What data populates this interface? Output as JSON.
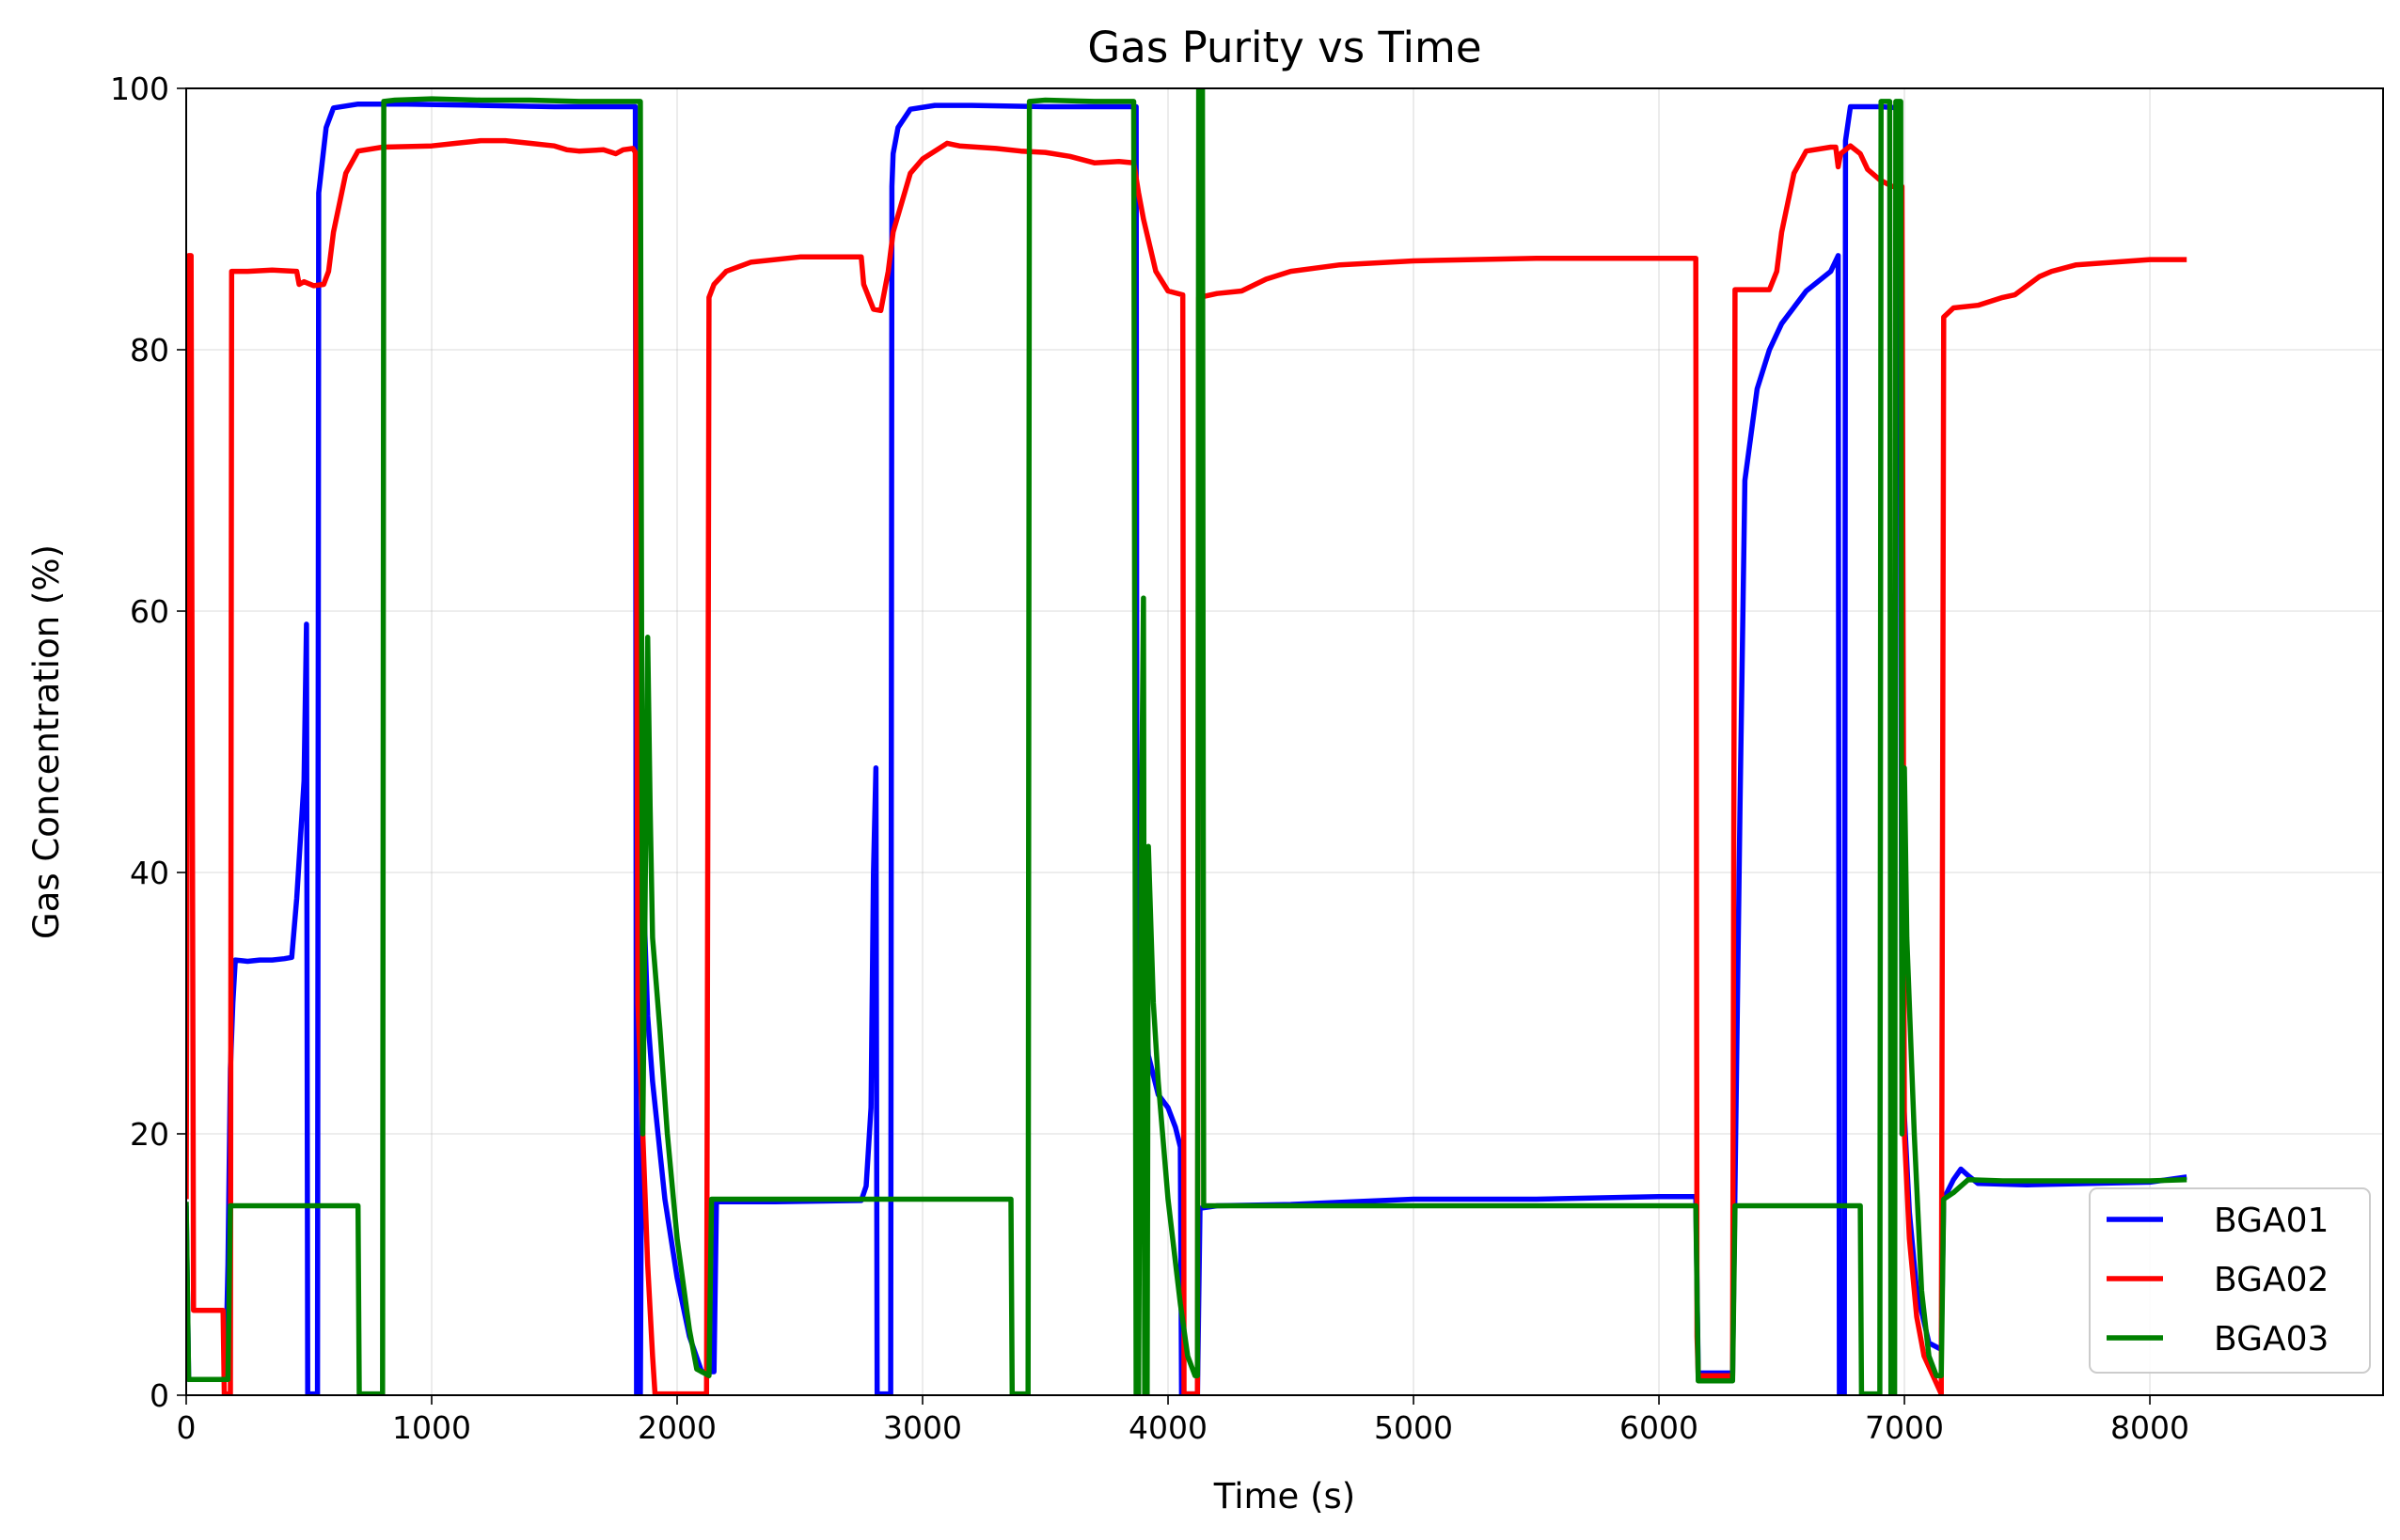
{
  "chart_data": {
    "type": "line",
    "title": "Gas Purity vs Time",
    "xlabel": "Time (s)",
    "ylabel": "Gas Concentration (%)",
    "xlim": [
      0,
      8950
    ],
    "ylim": [
      0,
      100
    ],
    "xticks": [
      0,
      1000,
      2000,
      3000,
      4000,
      5000,
      6000,
      7000,
      8000
    ],
    "yticks": [
      0,
      20,
      40,
      60,
      80,
      100
    ],
    "grid": true,
    "legend_position": "bottom-right",
    "series": [
      {
        "name": "BGA01",
        "color": "#0000ff",
        "points": [
          [
            0,
            14.5
          ],
          [
            10,
            1.2
          ],
          [
            160,
            1.2
          ],
          [
            170,
            10
          ],
          [
            180,
            25
          ],
          [
            190,
            30
          ],
          [
            200,
            33.3
          ],
          [
            250,
            33.2
          ],
          [
            300,
            33.3
          ],
          [
            350,
            33.3
          ],
          [
            400,
            33.4
          ],
          [
            430,
            33.5
          ],
          [
            450,
            38
          ],
          [
            470,
            44
          ],
          [
            480,
            47
          ],
          [
            490,
            59
          ],
          [
            495,
            0.1
          ],
          [
            535,
            0.1
          ],
          [
            540,
            92
          ],
          [
            570,
            97
          ],
          [
            600,
            98.5
          ],
          [
            700,
            98.8
          ],
          [
            900,
            98.8
          ],
          [
            1200,
            98.7
          ],
          [
            1500,
            98.6
          ],
          [
            1830,
            98.6
          ],
          [
            1835,
            0.1
          ],
          [
            1850,
            0.1
          ],
          [
            1860,
            40
          ],
          [
            1880,
            29
          ],
          [
            1900,
            24
          ],
          [
            1950,
            15
          ],
          [
            2000,
            9
          ],
          [
            2050,
            4.5
          ],
          [
            2100,
            1.8
          ],
          [
            2150,
            1.8
          ],
          [
            2160,
            14.8
          ],
          [
            2400,
            14.8
          ],
          [
            2750,
            14.9
          ],
          [
            2770,
            16
          ],
          [
            2790,
            22
          ],
          [
            2800,
            40
          ],
          [
            2810,
            48
          ],
          [
            2815,
            0.1
          ],
          [
            2870,
            0.1
          ],
          [
            2875,
            92.5
          ],
          [
            2880,
            95
          ],
          [
            2900,
            97
          ],
          [
            2950,
            98.4
          ],
          [
            3050,
            98.7
          ],
          [
            3200,
            98.7
          ],
          [
            3500,
            98.6
          ],
          [
            3870,
            98.6
          ],
          [
            3875,
            0.1
          ],
          [
            3880,
            30
          ],
          [
            3900,
            35
          ],
          [
            3920,
            26
          ],
          [
            3960,
            23
          ],
          [
            4000,
            22
          ],
          [
            4030,
            20.5
          ],
          [
            4050,
            19
          ],
          [
            4055,
            0.1
          ],
          [
            4120,
            0.1
          ],
          [
            4130,
            14.3
          ],
          [
            4200,
            14.5
          ],
          [
            4500,
            14.6
          ],
          [
            5000,
            15
          ],
          [
            5500,
            15
          ],
          [
            6000,
            15.2
          ],
          [
            6150,
            15.2
          ],
          [
            6160,
            1.7
          ],
          [
            6300,
            1.7
          ],
          [
            6310,
            16
          ],
          [
            6330,
            45
          ],
          [
            6350,
            70
          ],
          [
            6400,
            77
          ],
          [
            6450,
            80
          ],
          [
            6500,
            82
          ],
          [
            6600,
            84.5
          ],
          [
            6700,
            86
          ],
          [
            6730,
            87.2
          ],
          [
            6735,
            0.1
          ],
          [
            6755,
            0.1
          ],
          [
            6760,
            96
          ],
          [
            6780,
            98.6
          ],
          [
            6900,
            98.6
          ],
          [
            6980,
            98.5
          ],
          [
            6990,
            25
          ],
          [
            7020,
            14
          ],
          [
            7050,
            8
          ],
          [
            7100,
            4
          ],
          [
            7150,
            3.5
          ],
          [
            7160,
            15
          ],
          [
            7200,
            16.5
          ],
          [
            7230,
            17.3
          ],
          [
            7260,
            16.8
          ],
          [
            7300,
            16.2
          ],
          [
            7500,
            16.1
          ],
          [
            8000,
            16.3
          ],
          [
            8150,
            16.7
          ]
        ]
      },
      {
        "name": "BGA02",
        "color": "#ff0000",
        "points": [
          [
            0,
            15
          ],
          [
            10,
            87.2
          ],
          [
            20,
            87.2
          ],
          [
            30,
            6.5
          ],
          [
            150,
            6.5
          ],
          [
            155,
            0.1
          ],
          [
            180,
            0.1
          ],
          [
            185,
            86
          ],
          [
            250,
            86
          ],
          [
            350,
            86.1
          ],
          [
            450,
            86
          ],
          [
            460,
            85
          ],
          [
            480,
            85.2
          ],
          [
            520,
            84.9
          ],
          [
            560,
            85
          ],
          [
            580,
            86
          ],
          [
            600,
            89
          ],
          [
            650,
            93.5
          ],
          [
            700,
            95.2
          ],
          [
            800,
            95.5
          ],
          [
            1000,
            95.6
          ],
          [
            1100,
            95.8
          ],
          [
            1200,
            96
          ],
          [
            1300,
            96
          ],
          [
            1400,
            95.8
          ],
          [
            1500,
            95.6
          ],
          [
            1550,
            95.3
          ],
          [
            1600,
            95.2
          ],
          [
            1700,
            95.3
          ],
          [
            1750,
            95
          ],
          [
            1780,
            95.3
          ],
          [
            1820,
            95.4
          ],
          [
            1830,
            95.1
          ],
          [
            1840,
            30
          ],
          [
            1860,
            20
          ],
          [
            1880,
            10
          ],
          [
            1900,
            3
          ],
          [
            1910,
            0.1
          ],
          [
            2120,
            0.1
          ],
          [
            2130,
            84
          ],
          [
            2150,
            85
          ],
          [
            2200,
            86
          ],
          [
            2300,
            86.7
          ],
          [
            2500,
            87.1
          ],
          [
            2750,
            87.1
          ],
          [
            2760,
            85
          ],
          [
            2800,
            83.1
          ],
          [
            2830,
            83
          ],
          [
            2860,
            86
          ],
          [
            2880,
            89
          ],
          [
            2950,
            93.5
          ],
          [
            3000,
            94.6
          ],
          [
            3100,
            95.8
          ],
          [
            3150,
            95.6
          ],
          [
            3300,
            95.4
          ],
          [
            3400,
            95.2
          ],
          [
            3500,
            95.1
          ],
          [
            3600,
            94.8
          ],
          [
            3700,
            94.3
          ],
          [
            3800,
            94.4
          ],
          [
            3860,
            94.3
          ],
          [
            3880,
            92
          ],
          [
            3900,
            90
          ],
          [
            3950,
            86
          ],
          [
            4000,
            84.5
          ],
          [
            4060,
            84.2
          ],
          [
            4065,
            0.1
          ],
          [
            4120,
            0.1
          ],
          [
            4125,
            84
          ],
          [
            4200,
            84.3
          ],
          [
            4300,
            84.5
          ],
          [
            4400,
            85.4
          ],
          [
            4500,
            86
          ],
          [
            4700,
            86.5
          ],
          [
            5000,
            86.8
          ],
          [
            5500,
            87
          ],
          [
            6000,
            87
          ],
          [
            6150,
            87
          ],
          [
            6155,
            4.5
          ],
          [
            6160,
            1.5
          ],
          [
            6300,
            1.5
          ],
          [
            6310,
            84.6
          ],
          [
            6450,
            84.6
          ],
          [
            6480,
            86
          ],
          [
            6500,
            89
          ],
          [
            6550,
            93.5
          ],
          [
            6600,
            95.2
          ],
          [
            6700,
            95.5
          ],
          [
            6720,
            95.5
          ],
          [
            6730,
            94
          ],
          [
            6740,
            95
          ],
          [
            6780,
            95.6
          ],
          [
            6820,
            95
          ],
          [
            6850,
            93.8
          ],
          [
            6900,
            93
          ],
          [
            6950,
            92.5
          ],
          [
            6990,
            92.5
          ],
          [
            7000,
            20
          ],
          [
            7020,
            12
          ],
          [
            7050,
            6
          ],
          [
            7080,
            3
          ],
          [
            7150,
            0.1
          ],
          [
            7160,
            82.5
          ],
          [
            7200,
            83.2
          ],
          [
            7300,
            83.4
          ],
          [
            7400,
            84
          ],
          [
            7450,
            84.2
          ],
          [
            7550,
            85.6
          ],
          [
            7600,
            86
          ],
          [
            7700,
            86.5
          ],
          [
            8000,
            86.9
          ],
          [
            8150,
            86.9
          ]
        ]
      },
      {
        "name": "BGA03",
        "color": "#008000",
        "points": [
          [
            0,
            14.8
          ],
          [
            10,
            1.2
          ],
          [
            170,
            1.2
          ],
          [
            180,
            14.5
          ],
          [
            200,
            14.5
          ],
          [
            400,
            14.5
          ],
          [
            700,
            14.5
          ],
          [
            705,
            0.1
          ],
          [
            800,
            0.1
          ],
          [
            805,
            99
          ],
          [
            850,
            99.1
          ],
          [
            1000,
            99.2
          ],
          [
            1200,
            99.1
          ],
          [
            1400,
            99.1
          ],
          [
            1600,
            99
          ],
          [
            1850,
            99
          ],
          [
            1860,
            20
          ],
          [
            1880,
            58
          ],
          [
            1890,
            45
          ],
          [
            1900,
            35
          ],
          [
            1930,
            28
          ],
          [
            1960,
            20
          ],
          [
            2000,
            12
          ],
          [
            2050,
            5
          ],
          [
            2080,
            2
          ],
          [
            2130,
            1.5
          ],
          [
            2140,
            15
          ],
          [
            2300,
            15
          ],
          [
            2600,
            15
          ],
          [
            2900,
            15
          ],
          [
            3200,
            15
          ],
          [
            3360,
            15
          ],
          [
            3365,
            0.1
          ],
          [
            3430,
            0.1
          ],
          [
            3435,
            99
          ],
          [
            3500,
            99.1
          ],
          [
            3700,
            99
          ],
          [
            3860,
            99
          ],
          [
            3870,
            0.1
          ],
          [
            3880,
            0.1
          ],
          [
            3890,
            40
          ],
          [
            3900,
            61
          ],
          [
            3905,
            0.1
          ],
          [
            3915,
            0.1
          ],
          [
            3920,
            42
          ],
          [
            3940,
            30
          ],
          [
            3960,
            24
          ],
          [
            4000,
            15
          ],
          [
            4050,
            7
          ],
          [
            4080,
            3
          ],
          [
            4110,
            1.5
          ],
          [
            4120,
            1.5
          ],
          [
            4125,
            100
          ],
          [
            4140,
            100
          ],
          [
            4145,
            14.5
          ],
          [
            4500,
            14.5
          ],
          [
            5000,
            14.5
          ],
          [
            5500,
            14.5
          ],
          [
            6000,
            14.5
          ],
          [
            6150,
            14.5
          ],
          [
            6160,
            1.1
          ],
          [
            6300,
            1.1
          ],
          [
            6310,
            14.5
          ],
          [
            6500,
            14.5
          ],
          [
            6700,
            14.5
          ],
          [
            6820,
            14.5
          ],
          [
            6825,
            0.1
          ],
          [
            6900,
            0.1
          ],
          [
            6905,
            99
          ],
          [
            6940,
            99
          ],
          [
            6945,
            0.1
          ],
          [
            6960,
            0.1
          ],
          [
            6965,
            99
          ],
          [
            6985,
            99
          ],
          [
            6990,
            20
          ],
          [
            7000,
            48
          ],
          [
            7010,
            35
          ],
          [
            7040,
            20
          ],
          [
            7070,
            8
          ],
          [
            7100,
            3
          ],
          [
            7130,
            1.5
          ],
          [
            7150,
            1.5
          ],
          [
            7160,
            15
          ],
          [
            7200,
            15.5
          ],
          [
            7260,
            16.5
          ],
          [
            7400,
            16.4
          ],
          [
            7600,
            16.4
          ],
          [
            8000,
            16.4
          ],
          [
            8150,
            16.5
          ]
        ]
      }
    ]
  }
}
